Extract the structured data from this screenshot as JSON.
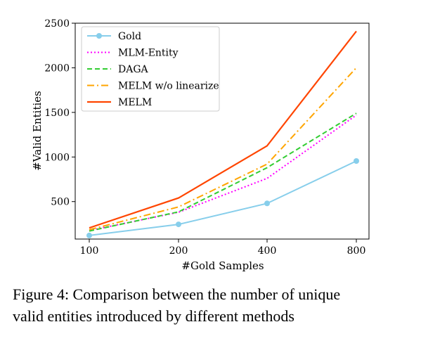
{
  "chart_data": {
    "type": "line",
    "xlabel": "#Gold Samples",
    "ylabel": "#Valid Entities",
    "x_categories": [
      "100",
      "200",
      "400",
      "800"
    ],
    "yticks": [
      500,
      1000,
      1500,
      2000,
      2500
    ],
    "ylim": [
      80,
      2500
    ],
    "legend_position": "top-left",
    "grid": false,
    "series": [
      {
        "name": "Gold",
        "color": "#87CEEB",
        "style": "solid-marker",
        "values": [
          120,
          245,
          480,
          955
        ]
      },
      {
        "name": "MLM-Entity",
        "color": "#FF00FF",
        "style": "dotted",
        "values": [
          175,
          380,
          760,
          1470
        ]
      },
      {
        "name": "DAGA",
        "color": "#32CD32",
        "style": "dashed",
        "values": [
          170,
          385,
          880,
          1490
        ]
      },
      {
        "name": "MELM w/o linearize",
        "color": "#FFA500",
        "style": "dashdot",
        "values": [
          185,
          440,
          920,
          2000
        ]
      },
      {
        "name": "MELM",
        "color": "#FF4500",
        "style": "solid",
        "values": [
          205,
          540,
          1125,
          2410
        ]
      }
    ]
  },
  "caption": {
    "line1": "Figure 4:  Comparison between the number of unique",
    "line2": "valid entities introduced by different methods"
  }
}
